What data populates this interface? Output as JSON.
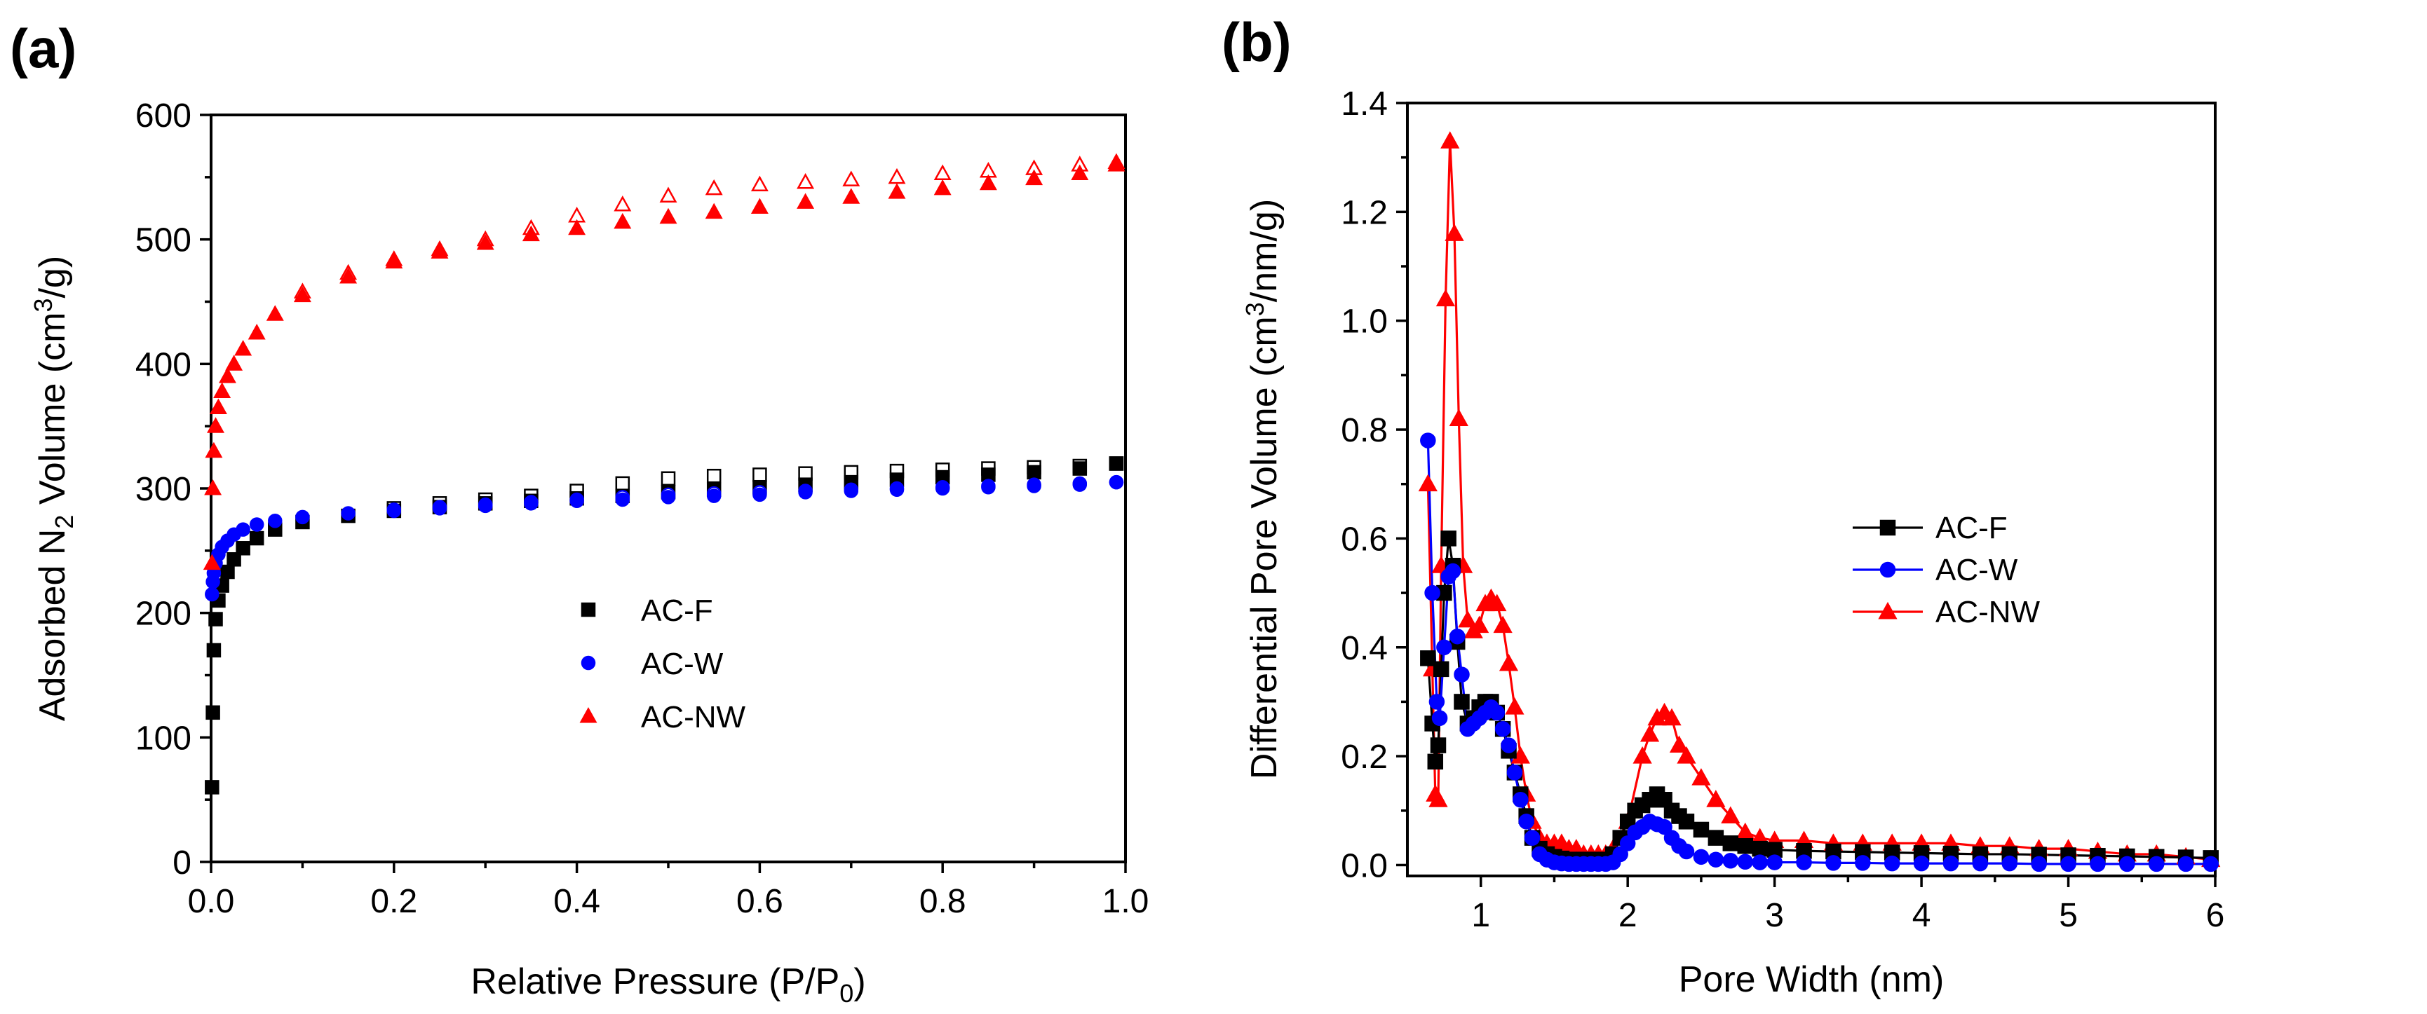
{
  "chart_data": [
    {
      "panel_label": "(a)",
      "type": "scatter",
      "xlabel_main": "Relative Pressure (P/P",
      "xlabel_sub": "0",
      "xlabel_end": ")",
      "ylabel_pre": "Adsorbed N",
      "ylabel_sub": "2",
      "ylabel_mid": " Volume (cm",
      "ylabel_sup": "3",
      "ylabel_end": "/g)",
      "xlim": [
        0,
        1.0
      ],
      "ylim": [
        0,
        600
      ],
      "xticks": [
        0.0,
        0.2,
        0.4,
        0.6,
        0.8,
        1.0
      ],
      "xtick_labels": [
        "0.0",
        "0.2",
        "0.4",
        "0.6",
        "0.8",
        "1.0"
      ],
      "yticks": [
        0,
        100,
        200,
        300,
        400,
        500,
        600
      ],
      "ytick_labels": [
        "0",
        "100",
        "200",
        "300",
        "400",
        "500",
        "600"
      ],
      "legend_position": "center-right",
      "series": [
        {
          "name": "AC-F",
          "color": "#000000",
          "marker": "square",
          "adsorption": {
            "x": [
              0.001,
              0.002,
              0.003,
              0.005,
              0.008,
              0.012,
              0.018,
              0.025,
              0.035,
              0.05,
              0.07,
              0.1,
              0.15,
              0.2,
              0.25,
              0.3,
              0.35,
              0.4,
              0.45,
              0.5,
              0.55,
              0.6,
              0.65,
              0.7,
              0.75,
              0.8,
              0.85,
              0.9,
              0.95,
              0.99
            ],
            "y": [
              60,
              120,
              170,
              195,
              210,
              222,
              233,
              243,
              252,
              260,
              267,
              273,
              278,
              282,
              285,
              288,
              290,
              292,
              294,
              297,
              299,
              301,
              303,
              305,
              307,
              309,
              311,
              313,
              316,
              320
            ]
          },
          "desorption": {
            "x": [
              0.99,
              0.95,
              0.9,
              0.85,
              0.8,
              0.75,
              0.7,
              0.65,
              0.6,
              0.55,
              0.5,
              0.45,
              0.4,
              0.35,
              0.3,
              0.25,
              0.2
            ],
            "y": [
              320,
              318,
              317,
              316,
              315,
              314,
              313,
              312,
              311,
              310,
              308,
              304,
              298,
              294,
              291,
              288,
              284
            ]
          }
        },
        {
          "name": "AC-W",
          "color": "#0000ff",
          "marker": "circle",
          "adsorption": {
            "x": [
              0.001,
              0.002,
              0.003,
              0.005,
              0.008,
              0.012,
              0.018,
              0.025,
              0.035,
              0.05,
              0.07,
              0.1,
              0.15,
              0.2,
              0.25,
              0.3,
              0.35,
              0.4,
              0.45,
              0.5,
              0.55,
              0.6,
              0.65,
              0.7,
              0.75,
              0.8,
              0.85,
              0.9,
              0.95,
              0.99
            ],
            "y": [
              215,
              225,
              232,
              240,
              247,
              253,
              258,
              263,
              267,
              271,
              274,
              277,
              280,
              282,
              284,
              286,
              288,
              290,
              291,
              293,
              294,
              295,
              297,
              298,
              299,
              300,
              301,
              302,
              303,
              305
            ]
          },
          "desorption": {
            "x": [
              0.99,
              0.95,
              0.9,
              0.85,
              0.8,
              0.75,
              0.7,
              0.65,
              0.6,
              0.55,
              0.5,
              0.45,
              0.4,
              0.35,
              0.3,
              0.25,
              0.2
            ],
            "y": [
              305,
              304,
              303,
              302,
              301,
              300,
              299,
              298,
              297,
              296,
              295,
              293,
              291,
              289,
              287,
              285,
              283
            ]
          }
        },
        {
          "name": "AC-NW",
          "color": "#ff0000",
          "marker": "triangle",
          "adsorption": {
            "x": [
              0.001,
              0.002,
              0.003,
              0.005,
              0.008,
              0.012,
              0.018,
              0.025,
              0.035,
              0.05,
              0.07,
              0.1,
              0.15,
              0.2,
              0.25,
              0.3,
              0.35,
              0.4,
              0.45,
              0.5,
              0.55,
              0.6,
              0.65,
              0.7,
              0.75,
              0.8,
              0.85,
              0.9,
              0.95,
              0.99
            ],
            "y": [
              240,
              300,
              330,
              350,
              365,
              378,
              390,
              400,
              412,
              425,
              440,
              455,
              470,
              482,
              490,
              497,
              504,
              509,
              514,
              518,
              522,
              526,
              530,
              534,
              538,
              541,
              545,
              549,
              553,
              560
            ]
          },
          "desorption": {
            "x": [
              0.99,
              0.95,
              0.9,
              0.85,
              0.8,
              0.75,
              0.7,
              0.65,
              0.6,
              0.55,
              0.5,
              0.45,
              0.4,
              0.35,
              0.3,
              0.25,
              0.2,
              0.15,
              0.1
            ],
            "y": [
              562,
              560,
              557,
              555,
              553,
              550,
              548,
              546,
              544,
              541,
              535,
              528,
              519,
              509,
              500,
              492,
              484,
              473,
              458
            ]
          }
        }
      ]
    },
    {
      "panel_label": "(b)",
      "type": "line",
      "xlabel": "Pore Width (nm)",
      "ylabel_pre": "Differential Pore Volume (cm",
      "ylabel_sup": "3",
      "ylabel_end": "/nm/g)",
      "xlim": [
        0.5,
        6
      ],
      "ylim": [
        -0.02,
        1.4
      ],
      "xticks": [
        1,
        2,
        3,
        4,
        5,
        6
      ],
      "xtick_labels": [
        "1",
        "2",
        "3",
        "4",
        "5",
        "6"
      ],
      "yticks": [
        0.0,
        0.2,
        0.4,
        0.6,
        0.8,
        1.0,
        1.2,
        1.4
      ],
      "ytick_labels": [
        "0.0",
        "0.2",
        "0.4",
        "0.6",
        "0.8",
        "1.0",
        "1.2",
        "1.4"
      ],
      "legend_position": "center",
      "series": [
        {
          "name": "AC-F",
          "color": "#000000",
          "marker": "square",
          "x": [
            0.64,
            0.67,
            0.69,
            0.71,
            0.73,
            0.75,
            0.78,
            0.81,
            0.84,
            0.87,
            0.91,
            0.95,
            0.99,
            1.03,
            1.07,
            1.11,
            1.15,
            1.19,
            1.23,
            1.27,
            1.31,
            1.35,
            1.4,
            1.45,
            1.5,
            1.55,
            1.6,
            1.65,
            1.7,
            1.75,
            1.8,
            1.85,
            1.9,
            1.95,
            2.0,
            2.05,
            2.1,
            2.15,
            2.2,
            2.25,
            2.3,
            2.35,
            2.4,
            2.5,
            2.6,
            2.7,
            2.8,
            2.9,
            3.0,
            3.2,
            3.4,
            3.6,
            3.8,
            4.0,
            4.2,
            4.4,
            4.6,
            4.8,
            5.0,
            5.2,
            5.4,
            5.6,
            5.8,
            5.97
          ],
          "y": [
            0.38,
            0.26,
            0.19,
            0.22,
            0.36,
            0.5,
            0.6,
            0.55,
            0.41,
            0.3,
            0.26,
            0.27,
            0.29,
            0.3,
            0.3,
            0.28,
            0.25,
            0.21,
            0.17,
            0.13,
            0.09,
            0.05,
            0.03,
            0.02,
            0.015,
            0.012,
            0.01,
            0.01,
            0.01,
            0.01,
            0.01,
            0.01,
            0.02,
            0.05,
            0.08,
            0.1,
            0.11,
            0.12,
            0.13,
            0.12,
            0.1,
            0.09,
            0.08,
            0.065,
            0.05,
            0.04,
            0.035,
            0.03,
            0.028,
            0.026,
            0.025,
            0.024,
            0.023,
            0.022,
            0.021,
            0.02,
            0.02,
            0.019,
            0.018,
            0.017,
            0.016,
            0.015,
            0.014,
            0.013
          ]
        },
        {
          "name": "AC-W",
          "color": "#0000ff",
          "marker": "circle",
          "x": [
            0.64,
            0.67,
            0.7,
            0.72,
            0.75,
            0.78,
            0.81,
            0.84,
            0.87,
            0.91,
            0.95,
            0.99,
            1.03,
            1.07,
            1.11,
            1.15,
            1.19,
            1.23,
            1.27,
            1.31,
            1.35,
            1.4,
            1.45,
            1.5,
            1.55,
            1.6,
            1.65,
            1.7,
            1.75,
            1.8,
            1.85,
            1.9,
            1.95,
            2.0,
            2.05,
            2.1,
            2.15,
            2.2,
            2.25,
            2.3,
            2.35,
            2.4,
            2.5,
            2.6,
            2.7,
            2.8,
            2.9,
            3.0,
            3.2,
            3.4,
            3.6,
            3.8,
            4.0,
            4.2,
            4.4,
            4.6,
            4.8,
            5.0,
            5.2,
            5.4,
            5.6,
            5.8,
            5.97
          ],
          "y": [
            0.78,
            0.5,
            0.3,
            0.27,
            0.4,
            0.53,
            0.54,
            0.42,
            0.35,
            0.25,
            0.26,
            0.27,
            0.28,
            0.29,
            0.28,
            0.25,
            0.22,
            0.17,
            0.12,
            0.08,
            0.05,
            0.02,
            0.01,
            0.005,
            0.003,
            0.002,
            0.002,
            0.002,
            0.002,
            0.002,
            0.002,
            0.005,
            0.02,
            0.04,
            0.06,
            0.07,
            0.08,
            0.075,
            0.07,
            0.05,
            0.035,
            0.025,
            0.015,
            0.01,
            0.008,
            0.006,
            0.005,
            0.005,
            0.005,
            0.004,
            0.004,
            0.003,
            0.003,
            0.003,
            0.003,
            0.003,
            0.002,
            0.002,
            0.002,
            0.002,
            0.002,
            0.002,
            0.002
          ]
        },
        {
          "name": "AC-NW",
          "color": "#ff0000",
          "marker": "triangle",
          "x": [
            0.64,
            0.67,
            0.69,
            0.71,
            0.73,
            0.76,
            0.79,
            0.82,
            0.85,
            0.88,
            0.91,
            0.95,
            0.99,
            1.03,
            1.07,
            1.11,
            1.15,
            1.19,
            1.23,
            1.27,
            1.31,
            1.35,
            1.4,
            1.45,
            1.5,
            1.55,
            1.6,
            1.65,
            1.7,
            1.75,
            1.8,
            1.85,
            1.9,
            2.0,
            2.1,
            2.15,
            2.2,
            2.25,
            2.3,
            2.35,
            2.4,
            2.5,
            2.6,
            2.7,
            2.8,
            2.9,
            3.0,
            3.2,
            3.4,
            3.6,
            3.8,
            4.0,
            4.2,
            4.4,
            4.6,
            4.8,
            5.0,
            5.2,
            5.4,
            5.6,
            5.8,
            5.97
          ],
          "y": [
            0.7,
            0.36,
            0.13,
            0.12,
            0.55,
            1.04,
            1.33,
            1.16,
            0.82,
            0.55,
            0.45,
            0.43,
            0.44,
            0.48,
            0.49,
            0.48,
            0.44,
            0.37,
            0.29,
            0.2,
            0.13,
            0.08,
            0.05,
            0.04,
            0.04,
            0.04,
            0.03,
            0.03,
            0.02,
            0.02,
            0.02,
            0.02,
            0.03,
            0.08,
            0.2,
            0.24,
            0.27,
            0.28,
            0.27,
            0.22,
            0.2,
            0.16,
            0.12,
            0.09,
            0.06,
            0.05,
            0.045,
            0.045,
            0.04,
            0.04,
            0.04,
            0.04,
            0.04,
            0.035,
            0.035,
            0.03,
            0.03,
            0.025,
            0.02,
            0.02,
            0.015,
            0.01
          ]
        }
      ]
    }
  ]
}
